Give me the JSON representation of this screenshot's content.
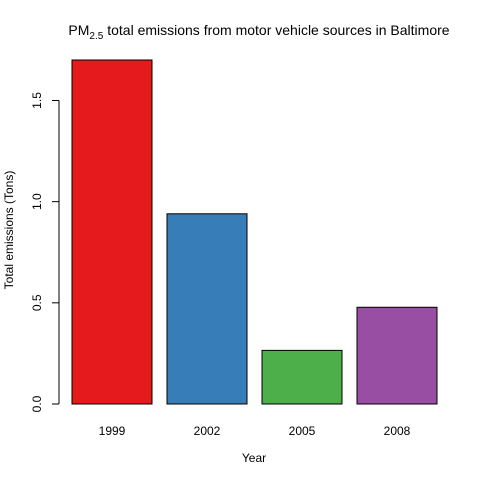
{
  "chart_data": {
    "type": "bar",
    "title": {
      "prefix": "PM",
      "subscript": "2.5",
      "suffix": " total emissions from motor vehicle sources in Baltimore"
    },
    "xlabel": "Year",
    "ylabel": "Total emissions (Tons)",
    "categories": [
      "1999",
      "2002",
      "2005",
      "2008"
    ],
    "values": [
      1.7,
      0.94,
      0.265,
      0.478
    ],
    "colors": [
      "#E41A1C",
      "#377EB8",
      "#4DAF4A",
      "#984EA3"
    ],
    "ylim": [
      0,
      1.7
    ],
    "yticks": [
      0,
      0.5,
      1,
      1.5
    ],
    "ytick_labels": [
      "0.0",
      "0.5",
      "1.0",
      "1.5"
    ],
    "grid": false,
    "legend": "none"
  }
}
